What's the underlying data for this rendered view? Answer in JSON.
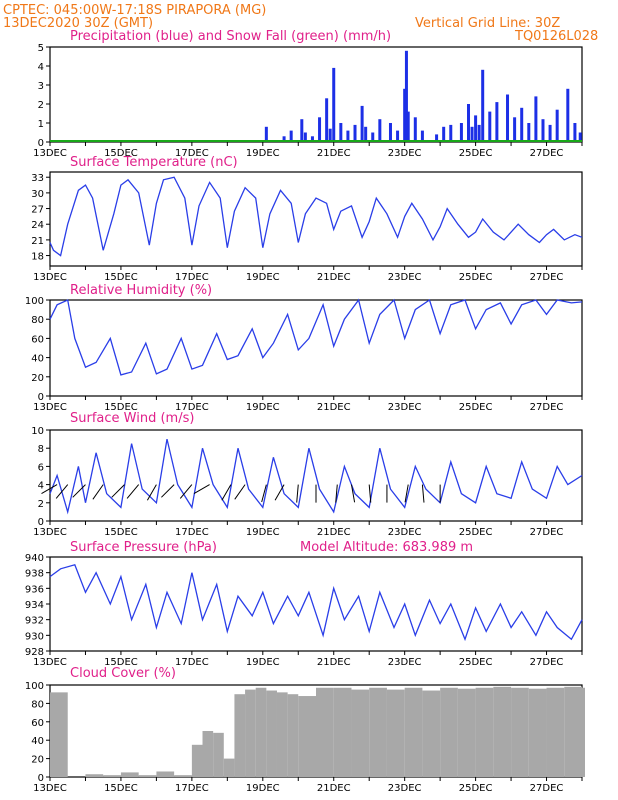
{
  "header": {
    "line1": "CPTEC:   045:00W-17:18S   PIRAPORA (MG)",
    "line2": "13DEC2020  30Z (GMT)",
    "grid_note": "Vertical Grid Line: 30Z",
    "model_id": "TQ0126L028"
  },
  "x_ticks": [
    "13DEC",
    "15DEC",
    "17DEC",
    "19DEC",
    "21DEC",
    "23DEC",
    "25DEC",
    "27DEC"
  ],
  "model_altitude": "Model Altitude: 683.989 m",
  "chart_data": [
    {
      "type": "bar",
      "title": "Precipitation (blue) and Snow Fall (green) (mm/h)",
      "ylim": [
        0,
        5
      ],
      "yticks": [
        0,
        1,
        2,
        3,
        4,
        5
      ],
      "colors": {
        "precip": "#1c2fe6",
        "snow": "#18a818"
      },
      "days_range": [
        13,
        28
      ],
      "precip_series": {
        "name": "Precipitation",
        "x": [
          19.0,
          19.1,
          19.6,
          19.8,
          20.1,
          20.2,
          20.4,
          20.6,
          20.8,
          20.9,
          21.0,
          21.2,
          21.4,
          21.6,
          21.8,
          21.9,
          22.1,
          22.3,
          22.6,
          22.8,
          23.0,
          23.05,
          23.1,
          23.3,
          23.5,
          23.9,
          24.1,
          24.3,
          24.6,
          24.8,
          24.9,
          25.0,
          25.1,
          25.2,
          25.4,
          25.6,
          25.9,
          26.1,
          26.3,
          26.5,
          26.7,
          26.9,
          27.1,
          27.3,
          27.6,
          27.8,
          27.95
        ],
        "values": [
          0.1,
          0.8,
          0.3,
          0.6,
          1.2,
          0.5,
          0.3,
          1.3,
          2.3,
          0.7,
          3.9,
          1.0,
          0.6,
          0.9,
          1.9,
          0.8,
          0.5,
          1.2,
          1.0,
          0.6,
          2.8,
          4.8,
          1.6,
          1.3,
          0.6,
          0.4,
          0.8,
          0.9,
          1.0,
          2.0,
          0.8,
          1.4,
          0.9,
          3.8,
          1.6,
          2.1,
          2.5,
          1.3,
          1.8,
          1.0,
          2.4,
          1.2,
          0.9,
          1.7,
          2.8,
          1.0,
          0.5
        ]
      },
      "snow_series": {
        "name": "Snow Fall",
        "values": [
          0
        ]
      }
    },
    {
      "type": "line",
      "title": "Surface Temperature (nC)",
      "ylim": [
        16,
        34
      ],
      "yticks": [
        18,
        21,
        24,
        27,
        30,
        33
      ],
      "series": [
        {
          "x": [
            13.0,
            13.1,
            13.3,
            13.5,
            13.8,
            14.0,
            14.2,
            14.5,
            14.8,
            15.0,
            15.2,
            15.5,
            15.8,
            16.0,
            16.2,
            16.5,
            16.8,
            17.0,
            17.2,
            17.5,
            17.8,
            18.0,
            18.2,
            18.5,
            18.8,
            19.0,
            19.2,
            19.5,
            19.8,
            20.0,
            20.2,
            20.5,
            20.8,
            21.0,
            21.2,
            21.5,
            21.8,
            22.0,
            22.2,
            22.5,
            22.8,
            23.0,
            23.2,
            23.5,
            23.8,
            24.0,
            24.2,
            24.5,
            24.8,
            25.0,
            25.2,
            25.5,
            25.8,
            26.0,
            26.2,
            26.5,
            26.8,
            27.0,
            27.2,
            27.5,
            27.8,
            28.0
          ],
          "y": [
            20.5,
            19.0,
            18.0,
            24.0,
            30.5,
            31.5,
            29.0,
            19.0,
            26.0,
            31.5,
            32.5,
            30.0,
            20.0,
            28.0,
            32.5,
            33.0,
            29.0,
            20.0,
            27.5,
            32.0,
            29.0,
            19.5,
            26.5,
            31.0,
            29.0,
            19.5,
            26.0,
            30.5,
            28.0,
            20.5,
            26.0,
            29.0,
            28.0,
            23.0,
            26.5,
            27.5,
            21.5,
            24.5,
            29.0,
            26.0,
            21.5,
            25.5,
            28.0,
            25.0,
            21.0,
            23.5,
            27.0,
            24.0,
            21.5,
            22.5,
            25.0,
            22.5,
            21.0,
            22.5,
            24.0,
            22.0,
            20.5,
            22.0,
            23.0,
            21.0,
            22.0,
            21.5
          ]
        }
      ]
    },
    {
      "type": "line",
      "title": "Relative Humidity (%)",
      "ylim": [
        0,
        100
      ],
      "yticks": [
        0,
        20,
        40,
        60,
        80,
        100
      ],
      "series": [
        {
          "x": [
            13.0,
            13.2,
            13.5,
            13.7,
            14.0,
            14.3,
            14.7,
            15.0,
            15.3,
            15.7,
            16.0,
            16.3,
            16.7,
            17.0,
            17.3,
            17.7,
            18.0,
            18.3,
            18.7,
            19.0,
            19.3,
            19.7,
            20.0,
            20.3,
            20.7,
            21.0,
            21.3,
            21.7,
            22.0,
            22.3,
            22.7,
            23.0,
            23.3,
            23.7,
            24.0,
            24.3,
            24.7,
            25.0,
            25.3,
            25.7,
            26.0,
            26.3,
            26.7,
            27.0,
            27.3,
            27.7,
            28.0
          ],
          "y": [
            80,
            95,
            100,
            60,
            30,
            35,
            60,
            22,
            25,
            55,
            23,
            28,
            60,
            28,
            32,
            65,
            38,
            42,
            70,
            40,
            55,
            85,
            48,
            60,
            95,
            52,
            80,
            100,
            55,
            85,
            100,
            60,
            90,
            100,
            65,
            95,
            100,
            70,
            90,
            97,
            75,
            95,
            100,
            85,
            100,
            97,
            98
          ]
        }
      ]
    },
    {
      "type": "line",
      "title": "Surface Wind (m/s)",
      "ylim": [
        0,
        10
      ],
      "yticks": [
        0,
        2,
        4,
        6,
        8,
        10
      ],
      "series": [
        {
          "x": [
            13.0,
            13.2,
            13.5,
            13.8,
            14.0,
            14.3,
            14.6,
            15.0,
            15.3,
            15.6,
            16.0,
            16.3,
            16.6,
            17.0,
            17.3,
            17.6,
            18.0,
            18.3,
            18.6,
            19.0,
            19.3,
            19.6,
            20.0,
            20.3,
            20.6,
            21.0,
            21.3,
            21.6,
            22.0,
            22.3,
            22.6,
            23.0,
            23.3,
            23.6,
            24.0,
            24.3,
            24.6,
            25.0,
            25.3,
            25.6,
            26.0,
            26.3,
            26.6,
            27.0,
            27.3,
            27.6,
            28.0
          ],
          "y": [
            3.0,
            5.0,
            1.0,
            6.0,
            2.0,
            7.5,
            3.0,
            1.5,
            8.5,
            3.5,
            2.0,
            9.0,
            4.0,
            1.5,
            8.0,
            4.0,
            1.5,
            8.0,
            3.5,
            1.5,
            7.0,
            3.0,
            1.5,
            8.0,
            3.5,
            1.0,
            6.0,
            3.0,
            1.5,
            8.0,
            3.5,
            1.5,
            6.0,
            3.5,
            2.0,
            6.5,
            3.0,
            2.0,
            6.0,
            3.0,
            2.5,
            6.5,
            3.5,
            2.5,
            6.0,
            4.0,
            5.0
          ]
        }
      ],
      "arrows_deg_from_north": [
        -120,
        -140,
        -135,
        -145,
        -135,
        -140,
        -150,
        -135,
        -140,
        -120,
        -150,
        -145,
        -165,
        -150,
        -175,
        -180,
        -175,
        -190,
        -185,
        -180,
        -170,
        -185,
        -180
      ],
      "arrow_days": [
        13.2,
        13.5,
        14.0,
        14.5,
        15.1,
        15.5,
        16.0,
        16.5,
        17.0,
        17.5,
        18.1,
        18.5,
        19.1,
        19.6,
        20.0,
        20.5,
        21.1,
        21.5,
        22.0,
        22.5,
        23.1,
        23.5,
        24.0
      ]
    },
    {
      "type": "line",
      "title": "Surface Pressure (hPa)",
      "ylim": [
        928,
        940
      ],
      "yticks": [
        928,
        930,
        932,
        934,
        936,
        938,
        940
      ],
      "series": [
        {
          "x": [
            13.0,
            13.3,
            13.7,
            14.0,
            14.3,
            14.7,
            15.0,
            15.3,
            15.7,
            16.0,
            16.3,
            16.7,
            17.0,
            17.3,
            17.7,
            18.0,
            18.3,
            18.7,
            19.0,
            19.3,
            19.7,
            20.0,
            20.3,
            20.7,
            21.0,
            21.3,
            21.7,
            22.0,
            22.3,
            22.7,
            23.0,
            23.3,
            23.7,
            24.0,
            24.3,
            24.7,
            25.0,
            25.3,
            25.7,
            26.0,
            26.3,
            26.7,
            27.0,
            27.3,
            27.7,
            28.0
          ],
          "y": [
            937.5,
            938.5,
            939.0,
            935.5,
            938.0,
            934.0,
            937.5,
            932.0,
            936.5,
            931.0,
            935.5,
            931.5,
            938.0,
            932.0,
            936.5,
            930.5,
            935.0,
            932.5,
            935.5,
            931.5,
            935.0,
            932.5,
            935.5,
            930.0,
            936.0,
            932.0,
            935.0,
            930.5,
            935.5,
            931.0,
            934.0,
            930.0,
            934.5,
            931.5,
            934.0,
            929.5,
            933.5,
            930.5,
            934.0,
            931.0,
            933.0,
            930.0,
            933.0,
            931.0,
            929.5,
            932.0
          ]
        }
      ]
    },
    {
      "type": "bar",
      "title": "Cloud Cover (%)",
      "ylim": [
        0,
        100
      ],
      "yticks": [
        0,
        20,
        40,
        60,
        80,
        100
      ],
      "color": "#a8a8a8",
      "x": [
        13.0,
        13.5,
        14.0,
        14.5,
        15.0,
        15.5,
        16.0,
        16.5,
        17.0,
        17.3,
        17.6,
        17.9,
        18.2,
        18.5,
        18.8,
        19.1,
        19.4,
        19.7,
        20.0,
        20.5,
        21.0,
        21.5,
        22.0,
        22.5,
        23.0,
        23.5,
        24.0,
        24.5,
        25.0,
        25.5,
        26.0,
        26.5,
        27.0,
        27.5,
        28.0
      ],
      "values": [
        92,
        0,
        3,
        2,
        5,
        2,
        6,
        2,
        35,
        50,
        48,
        20,
        90,
        95,
        97,
        94,
        92,
        90,
        88,
        97,
        97,
        95,
        97,
        95,
        97,
        94,
        97,
        96,
        97,
        98,
        97,
        96,
        97,
        98,
        97
      ]
    }
  ]
}
